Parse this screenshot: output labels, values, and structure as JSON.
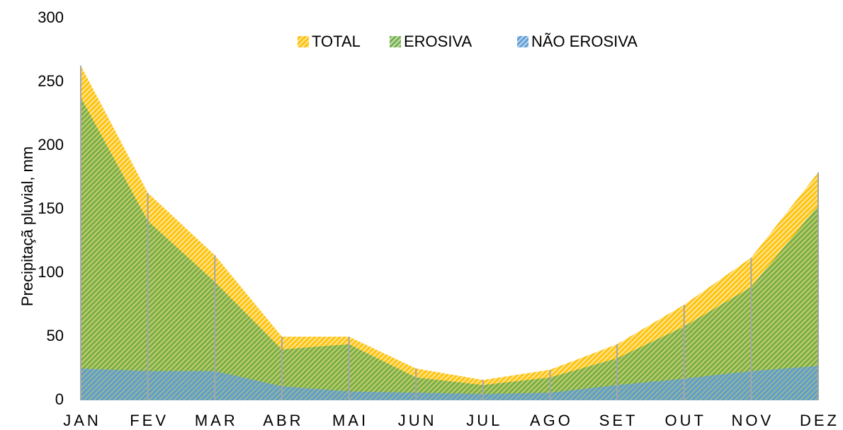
{
  "chart_data": {
    "type": "area",
    "y_label": "Precipitaçã pluvial, mm",
    "categories": [
      "JAN",
      "FEV",
      "MAR",
      "ABR",
      "MAI",
      "JUN",
      "JUL",
      "AGO",
      "SET",
      "OUT",
      "NOV",
      "DEZ"
    ],
    "series": [
      {
        "name": "TOTAL",
        "color": "#ffc000",
        "values": [
          263,
          163,
          114,
          50,
          50,
          25,
          16,
          24,
          44,
          75,
          112,
          179
        ]
      },
      {
        "name": "EROSIVA",
        "color": "#70ad47",
        "values": [
          238,
          141,
          93,
          40,
          44,
          18,
          12,
          18,
          33,
          58,
          89,
          153
        ]
      },
      {
        "name": "NÃO EROSIVA",
        "color": "#5b9bd5",
        "values": [
          25,
          23,
          23,
          11,
          7,
          6,
          5,
          6,
          12,
          17,
          23,
          27
        ]
      }
    ],
    "ylim": [
      0,
      300
    ],
    "yticks": [
      0,
      50,
      100,
      150,
      200,
      250,
      300
    ],
    "legend": "top"
  }
}
